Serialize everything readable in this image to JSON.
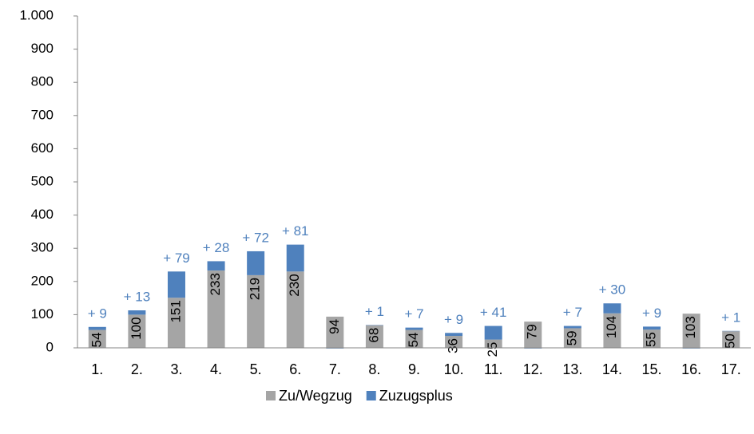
{
  "chart_data": {
    "type": "stacked_bar",
    "categories": [
      "1.",
      "2.",
      "3.",
      "4.",
      "5.",
      "6.",
      "7.",
      "8.",
      "9.",
      "10.",
      "11.",
      "12.",
      "13.",
      "14.",
      "15.",
      "16.",
      "17."
    ],
    "series": [
      {
        "name": "Zu/Wegzug",
        "color": "#a5a5a5",
        "values": [
          54,
          100,
          151,
          233,
          219,
          230,
          94,
          68,
          54,
          36,
          25,
          79,
          59,
          104,
          55,
          103,
          50
        ]
      },
      {
        "name": "Zuzugsplus",
        "color": "#4f81bd",
        "values": [
          9,
          13,
          79,
          28,
          72,
          81,
          -2,
          1,
          7,
          9,
          41,
          -2,
          7,
          30,
          9,
          -2,
          1
        ],
        "value_labels": [
          "+ 9",
          "+ 13",
          "+ 79",
          "+ 28",
          "+ 72",
          "+ 81",
          null,
          "+ 1",
          "+ 7",
          "+ 9",
          "+ 41",
          null,
          "+ 7",
          "+ 30",
          "+ 9",
          null,
          "+ 1"
        ]
      }
    ],
    "ylim": [
      0,
      1000
    ],
    "yticks": [
      0,
      100,
      200,
      300,
      400,
      500,
      600,
      700,
      800,
      900,
      {
        "value": 1000,
        "label": "1.000"
      }
    ],
    "legend": "bottom"
  }
}
